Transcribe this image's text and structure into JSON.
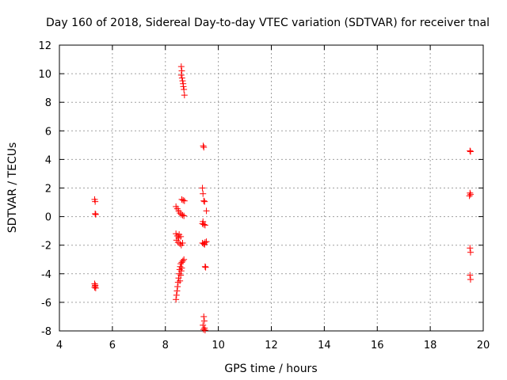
{
  "chart_data": {
    "type": "scatter",
    "title": "Day 160 of 2018, Sidereal Day-to-day VTEC variation (SDTVAR) for receiver tnal",
    "xlabel": "GPS time / hours",
    "ylabel": "SDTVAR / TECUs",
    "xlim": [
      4,
      20
    ],
    "ylim": [
      -8,
      12
    ],
    "xticks": [
      4,
      6,
      8,
      10,
      12,
      14,
      16,
      18,
      20
    ],
    "yticks": [
      -8,
      -6,
      -4,
      -2,
      0,
      2,
      4,
      6,
      8,
      10,
      12
    ],
    "grid": true,
    "marker": "+",
    "color": "#ff0000",
    "series": [
      {
        "name": "SDTVAR",
        "points": [
          [
            5.33,
            1.2
          ],
          [
            5.35,
            1.05
          ],
          [
            5.35,
            0.2
          ],
          [
            5.37,
            0.15
          ],
          [
            5.33,
            -4.7
          ],
          [
            5.35,
            -4.8
          ],
          [
            5.33,
            -4.95
          ],
          [
            5.37,
            -5.0
          ],
          [
            5.35,
            -4.85
          ],
          [
            8.4,
            0.7
          ],
          [
            8.45,
            0.55
          ],
          [
            8.5,
            0.4
          ],
          [
            8.55,
            0.25
          ],
          [
            8.6,
            0.15
          ],
          [
            8.65,
            0.1
          ],
          [
            8.7,
            0.05
          ],
          [
            8.62,
            1.2
          ],
          [
            8.67,
            1.15
          ],
          [
            8.72,
            1.1
          ],
          [
            8.4,
            -1.2
          ],
          [
            8.45,
            -1.35
          ],
          [
            8.5,
            -1.5
          ],
          [
            8.42,
            -1.65
          ],
          [
            8.48,
            -1.8
          ],
          [
            8.55,
            -1.9
          ],
          [
            8.6,
            -2.0
          ],
          [
            8.65,
            -1.85
          ],
          [
            8.52,
            -1.25
          ],
          [
            8.58,
            -1.4
          ],
          [
            8.4,
            -5.8
          ],
          [
            8.42,
            -5.5
          ],
          [
            8.44,
            -5.2
          ],
          [
            8.46,
            -4.9
          ],
          [
            8.48,
            -4.6
          ],
          [
            8.5,
            -4.3
          ],
          [
            8.52,
            -4.0
          ],
          [
            8.54,
            -3.7
          ],
          [
            8.56,
            -3.5
          ],
          [
            8.58,
            -3.3
          ],
          [
            8.62,
            -3.2
          ],
          [
            8.66,
            -3.1
          ],
          [
            8.7,
            -3.0
          ],
          [
            8.55,
            -4.5
          ],
          [
            8.58,
            -4.1
          ],
          [
            8.6,
            -3.8
          ],
          [
            8.62,
            -3.6
          ],
          [
            8.6,
            10.5
          ],
          [
            8.62,
            10.2
          ],
          [
            8.6,
            9.9
          ],
          [
            8.63,
            9.7
          ],
          [
            8.65,
            9.5
          ],
          [
            8.67,
            9.3
          ],
          [
            8.68,
            9.1
          ],
          [
            8.7,
            8.9
          ],
          [
            8.72,
            8.5
          ],
          [
            9.4,
            2.0
          ],
          [
            9.42,
            1.6
          ],
          [
            9.45,
            1.1
          ],
          [
            9.48,
            1.05
          ],
          [
            9.55,
            0.4
          ],
          [
            9.4,
            -0.5
          ],
          [
            9.45,
            -0.55
          ],
          [
            9.5,
            -0.6
          ],
          [
            9.42,
            -0.35
          ],
          [
            9.4,
            -1.85
          ],
          [
            9.45,
            -1.9
          ],
          [
            9.5,
            -1.8
          ],
          [
            9.55,
            -1.75
          ],
          [
            9.48,
            -1.95
          ],
          [
            9.5,
            -3.5
          ],
          [
            9.52,
            -3.55
          ],
          [
            9.43,
            4.95
          ],
          [
            9.45,
            4.85
          ],
          [
            9.45,
            -7.0
          ],
          [
            9.47,
            -7.3
          ],
          [
            9.42,
            -7.6
          ],
          [
            9.48,
            -7.8
          ],
          [
            9.44,
            -7.9
          ],
          [
            9.5,
            -7.95
          ],
          [
            19.5,
            4.6
          ],
          [
            19.52,
            4.55
          ],
          [
            19.5,
            1.65
          ],
          [
            19.52,
            1.55
          ],
          [
            19.48,
            1.45
          ],
          [
            19.5,
            -2.2
          ],
          [
            19.52,
            -2.5
          ],
          [
            19.5,
            -4.1
          ],
          [
            19.52,
            -4.4
          ]
        ]
      }
    ]
  }
}
